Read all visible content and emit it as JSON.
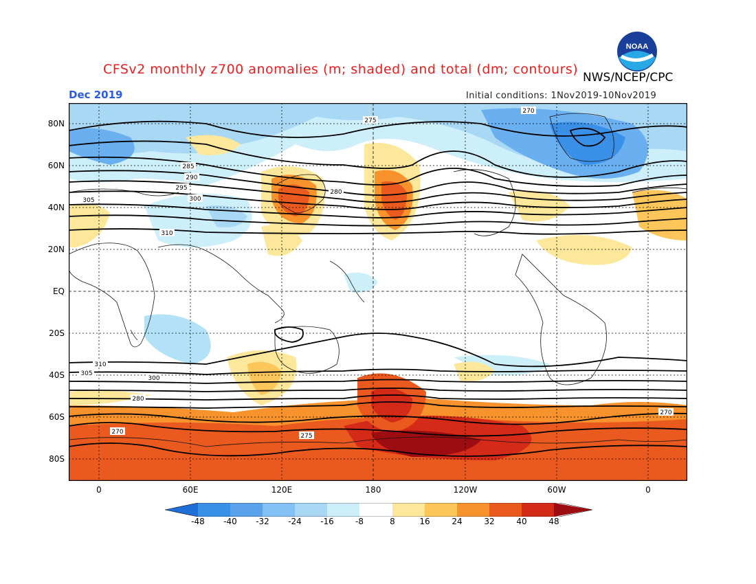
{
  "header": {
    "title": "CFSv2 monthly z700 anomalies (m; shaded) and total (dm; contours)",
    "agency": "NWS/NCEP/CPC",
    "month": "Dec 2019",
    "initial_conditions": "Initial conditions: 1Nov2019-10Nov2019",
    "logo_text": "NOAA"
  },
  "map": {
    "lat_labels": [
      "80N",
      "60N",
      "40N",
      "20N",
      "EQ",
      "20S",
      "40S",
      "60S",
      "80S"
    ],
    "lon_labels": [
      "0",
      "60E",
      "120E",
      "180",
      "120W",
      "60W",
      "0"
    ],
    "contour_labels": [
      "270",
      "275",
      "280",
      "285",
      "290",
      "295",
      "300",
      "305",
      "310"
    ],
    "colors": {
      "dark_blue": "#1f6fd6",
      "blue": "#3a8fe6",
      "mid_blue": "#6ab0f0",
      "light_blue": "#a9d8f5",
      "pale_blue": "#cdeffa",
      "white": "#ffffff",
      "pale_yellow": "#fde79a",
      "yellow": "#fcc65a",
      "orange": "#f7922d",
      "dark_orange": "#ea5a1e",
      "red": "#d42a18",
      "dark_red": "#9c0c10"
    }
  },
  "colorbar": {
    "ticks": [
      "-48",
      "-40",
      "-32",
      "-24",
      "-16",
      "-8",
      "8",
      "16",
      "24",
      "32",
      "40",
      "48"
    ],
    "colors": [
      "#1f6fd6",
      "#3a8fe6",
      "#5aa3ec",
      "#83c0f3",
      "#b3e2f8",
      "#ffffff",
      "#fde79a",
      "#fcc65a",
      "#f7922d",
      "#ea5a1e",
      "#d42a18",
      "#9c0c10"
    ]
  }
}
